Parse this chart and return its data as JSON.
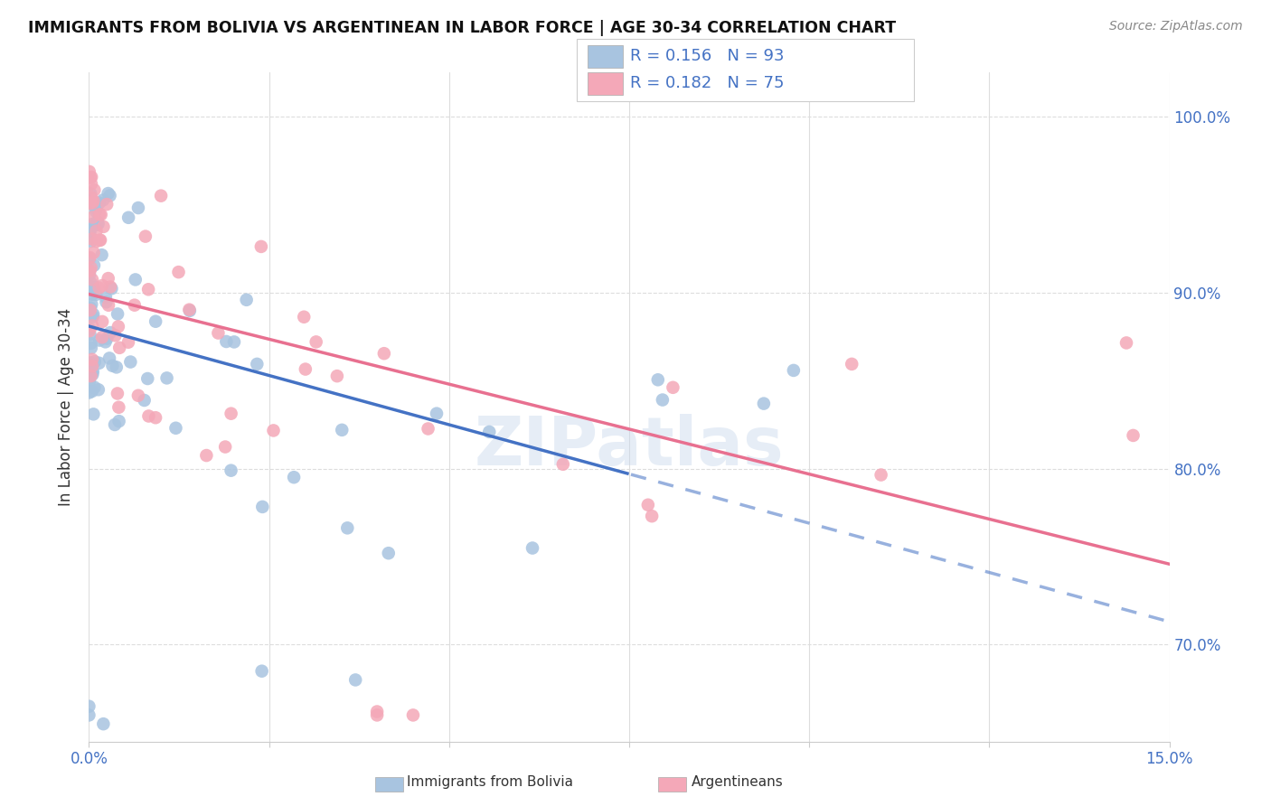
{
  "title": "IMMIGRANTS FROM BOLIVIA VS ARGENTINEAN IN LABOR FORCE | AGE 30-34 CORRELATION CHART",
  "source": "Source: ZipAtlas.com",
  "ylabel": "In Labor Force | Age 30-34",
  "legend_r1": "R = 0.156",
  "legend_n1": "N = 93",
  "legend_r2": "R = 0.182",
  "legend_n2": "N = 75",
  "color_bolivia": "#a8c4e0",
  "color_argentina": "#f4a8b8",
  "color_line_bolivia": "#4472c4",
  "color_line_argentina": "#e87090",
  "color_text_blue": "#4472c4",
  "watermark": "ZIPatlas",
  "xmin": 0.0,
  "xmax": 0.15,
  "ymin": 0.645,
  "ymax": 1.025,
  "grid_color": "#dddddd",
  "background_color": "#ffffff"
}
